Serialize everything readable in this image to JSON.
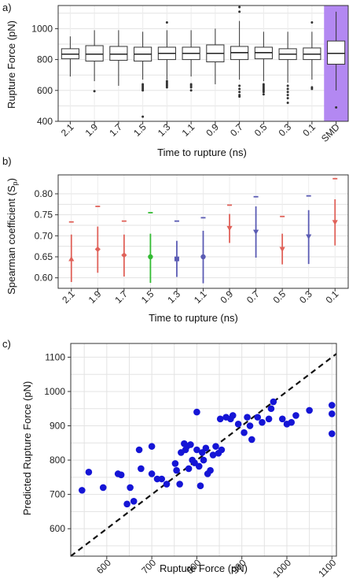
{
  "chart_data": [
    {
      "type": "boxplot",
      "panel_label": "a)",
      "categories": [
        "2.1",
        "1.9",
        "1.7",
        "1.5",
        "1.3",
        "1.1",
        "0.9",
        "0.7",
        "0.5",
        "0.3",
        "0.1",
        "SMD"
      ],
      "xlabel": "Time to rupture (ns)",
      "ylabel": "Rupture Force (pN)",
      "ylim": [
        400,
        1150
      ],
      "yticks": [
        400,
        600,
        800,
        1000
      ],
      "highlight_category": "SMD",
      "highlight_color": "#b388f2",
      "grid": true,
      "boxes": [
        {
          "min": 690,
          "q1": 805,
          "median": 835,
          "q3": 870,
          "max": 950,
          "outliers": []
        },
        {
          "min": 660,
          "q1": 790,
          "median": 835,
          "q3": 890,
          "max": 990,
          "outliers": [
            595
          ]
        },
        {
          "min": 630,
          "q1": 795,
          "median": 835,
          "q3": 885,
          "max": 990,
          "outliers": []
        },
        {
          "min": 670,
          "q1": 790,
          "median": 835,
          "q3": 880,
          "max": 980,
          "outliers": [
            640,
            630,
            620,
            610,
            600,
            430
          ]
        },
        {
          "min": 670,
          "q1": 800,
          "median": 840,
          "q3": 880,
          "max": 990,
          "outliers": [
            1040,
            660,
            650,
            640,
            630,
            620
          ]
        },
        {
          "min": 690,
          "q1": 800,
          "median": 840,
          "q3": 880,
          "max": 990,
          "outliers": [
            640,
            630,
            620,
            600
          ]
        },
        {
          "min": 640,
          "q1": 785,
          "median": 840,
          "q3": 895,
          "max": 1000,
          "outliers": []
        },
        {
          "min": 670,
          "q1": 800,
          "median": 845,
          "q3": 885,
          "max": 1050,
          "outliers": [
            1140,
            1110,
            630,
            610,
            590,
            570,
            560
          ]
        },
        {
          "min": 660,
          "q1": 805,
          "median": 845,
          "q3": 880,
          "max": 980,
          "outliers": [
            640,
            630,
            620,
            610,
            600,
            590,
            575
          ]
        },
        {
          "min": 650,
          "q1": 800,
          "median": 835,
          "q3": 870,
          "max": 980,
          "outliers": [
            630,
            610,
            590,
            570,
            550,
            520
          ]
        },
        {
          "min": 670,
          "q1": 800,
          "median": 835,
          "q3": 875,
          "max": 980,
          "outliers": [
            1040,
            620,
            610
          ]
        },
        {
          "min": 600,
          "q1": 770,
          "median": 840,
          "q3": 920,
          "max": 1110,
          "outliers": [
            490
          ]
        }
      ]
    },
    {
      "type": "errorbar",
      "panel_label": "b)",
      "categories": [
        "2.1",
        "1.9",
        "1.7",
        "1.5",
        "1.3",
        "1.1",
        "0.9",
        "0.7",
        "0.5",
        "0.3",
        "0.1"
      ],
      "xlabel": "Time to rupture (ns)",
      "ylabel": "Spearman coefficient (S",
      "ylabel_sub": "p",
      "ylabel_close": ")",
      "ylim": [
        0.575,
        0.845
      ],
      "yticks": [
        0.6,
        0.65,
        0.7,
        0.75,
        0.8
      ],
      "ytick_labels": [
        "0.60",
        "0.65",
        "0.70",
        "0.75",
        "0.80"
      ],
      "grid": true,
      "points": [
        {
          "mean": 0.645,
          "low": 0.59,
          "high": 0.703,
          "marker": "up",
          "color": "#e0625a",
          "ref": 0.733
        },
        {
          "mean": 0.668,
          "low": 0.612,
          "high": 0.722,
          "marker": "diamond",
          "color": "#e0625a",
          "ref": 0.77
        },
        {
          "mean": 0.654,
          "low": 0.603,
          "high": 0.703,
          "marker": "diamond",
          "color": "#e0625a",
          "ref": 0.735
        },
        {
          "mean": 0.65,
          "low": 0.588,
          "high": 0.705,
          "marker": "circle",
          "color": "#33bb33",
          "ref": 0.755
        },
        {
          "mean": 0.645,
          "low": 0.602,
          "high": 0.688,
          "marker": "square",
          "color": "#5b5cb4",
          "ref": 0.735
        },
        {
          "mean": 0.65,
          "low": 0.587,
          "high": 0.712,
          "marker": "circle",
          "color": "#5b5cb4",
          "ref": 0.743
        },
        {
          "mean": 0.718,
          "low": 0.683,
          "high": 0.752,
          "marker": "down",
          "color": "#e0625a",
          "ref": 0.773
        },
        {
          "mean": 0.709,
          "low": 0.648,
          "high": 0.77,
          "marker": "down",
          "color": "#5b5cb4",
          "ref": 0.793
        },
        {
          "mean": 0.668,
          "low": 0.632,
          "high": 0.705,
          "marker": "down",
          "color": "#e0625a",
          "ref": 0.746
        },
        {
          "mean": 0.698,
          "low": 0.633,
          "high": 0.761,
          "marker": "down",
          "color": "#5b5cb4",
          "ref": 0.795
        },
        {
          "mean": 0.732,
          "low": 0.677,
          "high": 0.787,
          "marker": "down",
          "color": "#e0625a",
          "ref": 0.836
        }
      ]
    },
    {
      "type": "scatter",
      "panel_label": "c)",
      "xlabel": "Rupture Force (pN)",
      "ylabel": "Predicted Rupture Force (pN)",
      "xlim": [
        520,
        1110
      ],
      "ylim": [
        520,
        1140
      ],
      "xticks": [
        600,
        700,
        800,
        900,
        1000,
        1100
      ],
      "yticks": [
        600,
        700,
        800,
        900,
        1000,
        1100
      ],
      "identity_line": true,
      "grid": true,
      "point_color": "#1515d6",
      "x": [
        545,
        560,
        592,
        625,
        632,
        645,
        652,
        660,
        672,
        676,
        700,
        700,
        712,
        722,
        733,
        752,
        755,
        762,
        765,
        772,
        775,
        778,
        782,
        786,
        790,
        795,
        800,
        800,
        805,
        808,
        812,
        815,
        820,
        824,
        830,
        836,
        842,
        848,
        852,
        855,
        865,
        875,
        880,
        892,
        905,
        912,
        918,
        922,
        935,
        945,
        960,
        965,
        970,
        990,
        1000,
        1010,
        1020,
        1050,
        1100,
        1100,
        1100
      ],
      "y": [
        712,
        765,
        720,
        760,
        757,
        672,
        720,
        680,
        830,
        775,
        840,
        760,
        745,
        745,
        730,
        790,
        770,
        730,
        822,
        848,
        830,
        840,
        775,
        845,
        800,
        792,
        940,
        830,
        782,
        725,
        822,
        800,
        835,
        760,
        770,
        815,
        840,
        820,
        920,
        830,
        925,
        920,
        930,
        905,
        880,
        925,
        900,
        860,
        925,
        910,
        920,
        950,
        970,
        920,
        905,
        910,
        930,
        945,
        960,
        935,
        877
      ]
    }
  ]
}
